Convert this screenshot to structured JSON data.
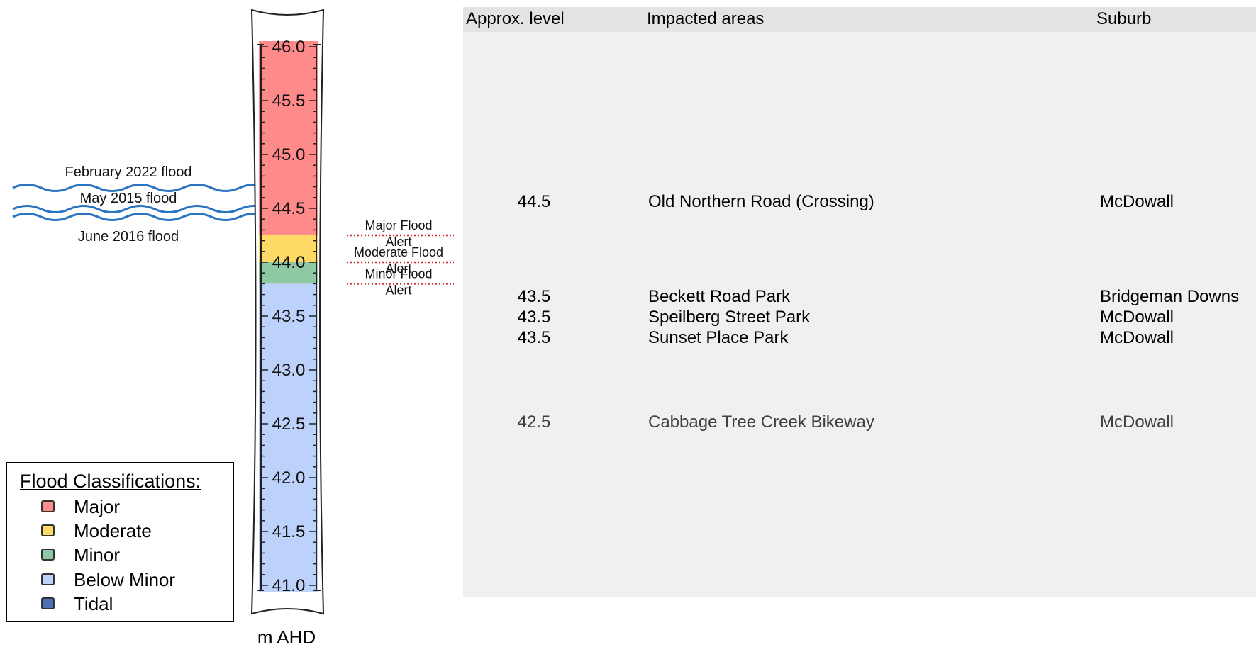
{
  "gauge": {
    "unit_label": "m AHD",
    "ticks": [
      "46.0",
      "45.5",
      "45.0",
      "44.5",
      "44.0",
      "43.5",
      "43.0",
      "42.5",
      "42.0",
      "41.5",
      "41.0"
    ],
    "bands": [
      {
        "name": "Major",
        "from": 44.25,
        "to": 46.2,
        "color": "#ff8a8a"
      },
      {
        "name": "Moderate",
        "from": 44.0,
        "to": 44.25,
        "color": "#ffd966"
      },
      {
        "name": "Minor",
        "from": 43.8,
        "to": 44.0,
        "color": "#8fc9a3"
      },
      {
        "name": "Below Minor",
        "from": 40.9,
        "to": 43.8,
        "color": "#bcd2fb"
      }
    ],
    "alerts": [
      {
        "label_top": "Major Flood",
        "label_bottom": "Alert",
        "level": 44.25
      },
      {
        "label_top": "Moderate Flood",
        "label_bottom": "Alert",
        "level": 44.0
      },
      {
        "label_top": "Minor Flood",
        "label_bottom": "Alert",
        "level": 43.8
      }
    ],
    "floods": [
      {
        "label": "February 2022 flood"
      },
      {
        "label": "May 2015 flood"
      },
      {
        "label": "June 2016 flood"
      }
    ]
  },
  "legend": {
    "title": "Flood Classifications:",
    "items": [
      {
        "label": "Major",
        "color": "#ff8a8a"
      },
      {
        "label": "Moderate",
        "color": "#ffd966"
      },
      {
        "label": "Minor",
        "color": "#8fc9a3"
      },
      {
        "label": "Below Minor",
        "color": "#bcd2fb"
      },
      {
        "label": "Tidal",
        "color": "#4a6fb5"
      }
    ]
  },
  "table": {
    "headers": {
      "level": "Approx. level",
      "area": "Impacted areas",
      "suburb": "Suburb"
    },
    "rows": [
      {
        "level": "44.5",
        "area": "Old Northern Road (Crossing)",
        "suburb": "McDowall"
      },
      {
        "level": "43.5",
        "area": "Beckett Road Park",
        "suburb": "Bridgeman Downs"
      },
      {
        "level": "43.5",
        "area": "Speilberg Street Park",
        "suburb": "McDowall"
      },
      {
        "level": "43.5",
        "area": "Sunset Place Park",
        "suburb": "McDowall"
      },
      {
        "level": "42.5",
        "area": "Cabbage Tree Creek Bikeway",
        "suburb": "McDowall"
      }
    ]
  }
}
